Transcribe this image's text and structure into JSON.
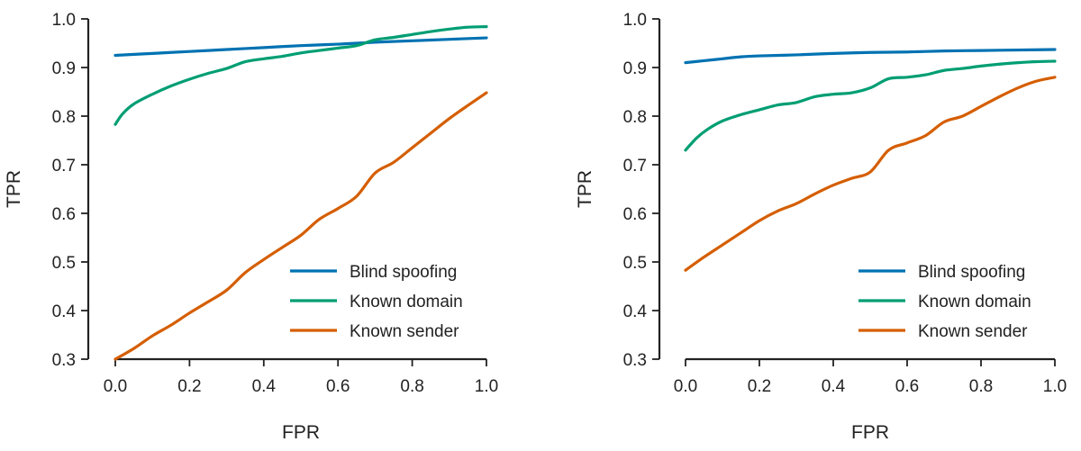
{
  "chart_data": [
    {
      "type": "line",
      "xlabel": "FPR",
      "ylabel": "TPR",
      "xlim": [
        0.0,
        1.0
      ],
      "ylim": [
        0.3,
        1.0
      ],
      "xticks": [
        "0.0",
        "0.2",
        "0.4",
        "0.6",
        "0.8",
        "1.0"
      ],
      "yticks": [
        "0.3",
        "0.4",
        "0.5",
        "0.6",
        "0.7",
        "0.8",
        "0.9",
        "1.0"
      ],
      "grid": false,
      "legend": "lower-right",
      "series": [
        {
          "name": "Blind spoofing",
          "color": "#0072b2",
          "x": [
            0.0,
            0.1,
            0.2,
            0.3,
            0.4,
            0.5,
            0.6,
            0.7,
            0.8,
            0.9,
            1.0
          ],
          "y": [
            0.925,
            0.929,
            0.933,
            0.937,
            0.941,
            0.945,
            0.948,
            0.952,
            0.955,
            0.958,
            0.961
          ]
        },
        {
          "name": "Known domain",
          "color": "#009e73",
          "x": [
            0.0,
            0.02,
            0.05,
            0.1,
            0.15,
            0.2,
            0.25,
            0.3,
            0.35,
            0.4,
            0.45,
            0.5,
            0.55,
            0.6,
            0.65,
            0.7,
            0.75,
            0.8,
            0.85,
            0.9,
            0.95,
            1.0
          ],
          "y": [
            0.783,
            0.805,
            0.825,
            0.845,
            0.862,
            0.876,
            0.888,
            0.898,
            0.912,
            0.918,
            0.923,
            0.93,
            0.935,
            0.94,
            0.945,
            0.957,
            0.962,
            0.968,
            0.974,
            0.979,
            0.983,
            0.984
          ]
        },
        {
          "name": "Known sender",
          "color": "#d55e00",
          "x": [
            0.0,
            0.05,
            0.1,
            0.15,
            0.2,
            0.25,
            0.3,
            0.35,
            0.4,
            0.45,
            0.5,
            0.55,
            0.6,
            0.65,
            0.7,
            0.75,
            0.8,
            0.85,
            0.9,
            0.95,
            1.0
          ],
          "y": [
            0.3,
            0.322,
            0.348,
            0.37,
            0.395,
            0.418,
            0.442,
            0.478,
            0.505,
            0.53,
            0.555,
            0.588,
            0.61,
            0.635,
            0.683,
            0.705,
            0.735,
            0.765,
            0.795,
            0.822,
            0.848
          ]
        }
      ]
    },
    {
      "type": "line",
      "xlabel": "FPR",
      "ylabel": "TPR",
      "xlim": [
        0.0,
        1.0
      ],
      "ylim": [
        0.3,
        1.0
      ],
      "xticks": [
        "0.0",
        "0.2",
        "0.4",
        "0.6",
        "0.8",
        "1.0"
      ],
      "yticks": [
        "0.3",
        "0.4",
        "0.5",
        "0.6",
        "0.7",
        "0.8",
        "0.9",
        "1.0"
      ],
      "grid": false,
      "legend": "lower-right",
      "series": [
        {
          "name": "Blind spoofing",
          "color": "#0072b2",
          "x": [
            0.0,
            0.05,
            0.1,
            0.15,
            0.2,
            0.3,
            0.4,
            0.5,
            0.6,
            0.7,
            0.8,
            0.9,
            1.0
          ],
          "y": [
            0.91,
            0.914,
            0.918,
            0.922,
            0.924,
            0.926,
            0.929,
            0.931,
            0.932,
            0.934,
            0.935,
            0.936,
            0.937
          ]
        },
        {
          "name": "Known domain",
          "color": "#009e73",
          "x": [
            0.0,
            0.03,
            0.06,
            0.1,
            0.15,
            0.2,
            0.25,
            0.3,
            0.35,
            0.4,
            0.45,
            0.5,
            0.55,
            0.6,
            0.65,
            0.7,
            0.75,
            0.8,
            0.85,
            0.9,
            0.95,
            1.0
          ],
          "y": [
            0.73,
            0.755,
            0.773,
            0.79,
            0.803,
            0.813,
            0.823,
            0.828,
            0.84,
            0.845,
            0.848,
            0.858,
            0.877,
            0.88,
            0.885,
            0.894,
            0.898,
            0.903,
            0.907,
            0.91,
            0.912,
            0.913
          ]
        },
        {
          "name": "Known sender",
          "color": "#d55e00",
          "x": [
            0.0,
            0.05,
            0.1,
            0.15,
            0.2,
            0.25,
            0.3,
            0.35,
            0.4,
            0.45,
            0.5,
            0.55,
            0.6,
            0.65,
            0.7,
            0.75,
            0.8,
            0.85,
            0.9,
            0.95,
            1.0
          ],
          "y": [
            0.483,
            0.51,
            0.535,
            0.56,
            0.585,
            0.605,
            0.62,
            0.64,
            0.658,
            0.672,
            0.685,
            0.73,
            0.745,
            0.76,
            0.788,
            0.8,
            0.82,
            0.84,
            0.858,
            0.872,
            0.88
          ]
        }
      ]
    }
  ]
}
